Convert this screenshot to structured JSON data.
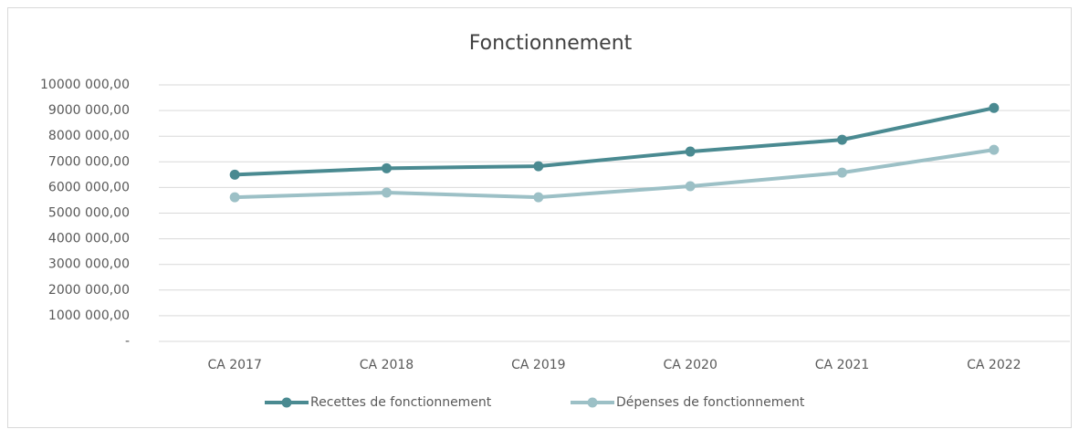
{
  "chart_data": {
    "type": "line",
    "title": "Fonctionnement",
    "categories": [
      "CA 2017",
      "CA 2018",
      "CA 2019",
      "CA 2020",
      "CA 2021",
      "CA 2022"
    ],
    "series": [
      {
        "name": "Recettes de fonctionnement",
        "color": "#4a8a91",
        "values": [
          6500000,
          6750000,
          6830000,
          7400000,
          7860000,
          9100000
        ]
      },
      {
        "name": "Dépenses de fonctionnement",
        "color": "#9cc0c6",
        "values": [
          5620000,
          5800000,
          5620000,
          6050000,
          6580000,
          7470000
        ]
      }
    ],
    "ylim": [
      0,
      10000000
    ],
    "yticks": [
      {
        "value": 0,
        "label": "-"
      },
      {
        "value": 1000000,
        "label": "1000 000,00"
      },
      {
        "value": 2000000,
        "label": "2000 000,00"
      },
      {
        "value": 3000000,
        "label": "3000 000,00"
      },
      {
        "value": 4000000,
        "label": "4000 000,00"
      },
      {
        "value": 5000000,
        "label": "5000 000,00"
      },
      {
        "value": 6000000,
        "label": "6000 000,00"
      },
      {
        "value": 7000000,
        "label": "7000 000,00"
      },
      {
        "value": 8000000,
        "label": "8000 000,00"
      },
      {
        "value": 9000000,
        "label": "9000 000,00"
      },
      {
        "value": 10000000,
        "label": "10000 000,00"
      }
    ],
    "grid": true,
    "legend": "bottom"
  }
}
